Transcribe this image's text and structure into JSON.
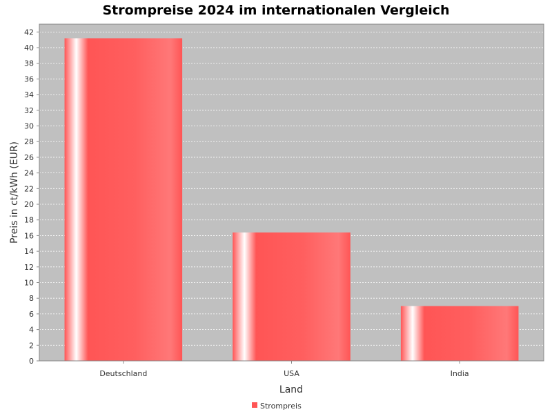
{
  "chart_data": {
    "type": "bar",
    "title": "Strompreise 2024 im internationalen Vergleich",
    "xlabel": "Land",
    "ylabel": "Preis in ct/kWh (EUR)",
    "categories": [
      "Deutschland",
      "USA",
      "India"
    ],
    "series": [
      {
        "name": "Strompreis",
        "values": [
          41.2,
          16.4,
          7.0
        ]
      }
    ],
    "ylim": [
      0,
      43
    ],
    "y_ticks": [
      0,
      2,
      4,
      6,
      8,
      10,
      12,
      14,
      16,
      18,
      20,
      22,
      24,
      26,
      28,
      30,
      32,
      34,
      36,
      38,
      40,
      42
    ],
    "grid": true,
    "legend_position": "bottom",
    "colors": {
      "bar": "#ff5555",
      "plot_background": "#c0c0c0",
      "grid": "#ffffff",
      "text": "#333333",
      "title": "#000000"
    }
  }
}
